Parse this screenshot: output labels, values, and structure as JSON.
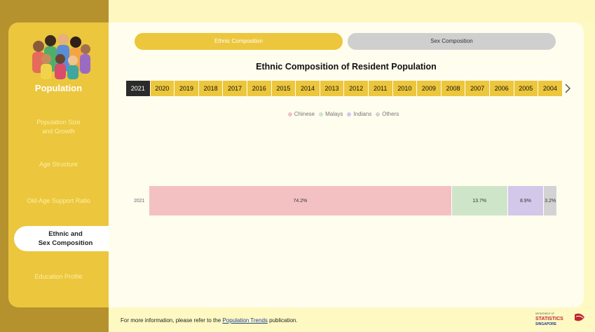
{
  "sidebar": {
    "title": "Population",
    "items": [
      {
        "label": "Population Size and Growth"
      },
      {
        "label": "Age Structure"
      },
      {
        "label": "Old-Age Support Ratio"
      },
      {
        "label_line1": "Ethnic and",
        "label_line2": "Sex Composition",
        "active": true
      },
      {
        "label": "Education Profile"
      }
    ]
  },
  "tabs": {
    "ethnic": "Ethnic Composition",
    "sex": "Sex Composition"
  },
  "chart_title": "Ethnic Composition of Resident Population",
  "years": [
    "2021",
    "2020",
    "2019",
    "2018",
    "2017",
    "2016",
    "2015",
    "2014",
    "2013",
    "2012",
    "2011",
    "2010",
    "2009",
    "2008",
    "2007",
    "2006",
    "2005",
    "2004"
  ],
  "selected_year": "2021",
  "chart_data": {
    "type": "bar",
    "orientation": "horizontal-stacked",
    "categories": [
      "2021"
    ],
    "series": [
      {
        "name": "Chinese",
        "values": [
          74.2
        ],
        "label": "74.2%",
        "color": "#F4C1C3"
      },
      {
        "name": "Malays",
        "values": [
          13.7
        ],
        "label": "13.7%",
        "color": "#CFE5C9"
      },
      {
        "name": "Indians",
        "values": [
          8.9
        ],
        "label": "8.9%",
        "color": "#D3C7EA"
      },
      {
        "name": "Others",
        "values": [
          3.2
        ],
        "label": "3.2%",
        "color": "#D3D3D3"
      }
    ],
    "legend_position": "top-center"
  },
  "footer": {
    "prefix": "For more information, please refer to the ",
    "link": "Population Trends",
    "suffix": " publication."
  },
  "logo": {
    "line1": "DEPARTMENT OF",
    "line2": "STATISTICS",
    "line3": "SINGAPORE"
  }
}
